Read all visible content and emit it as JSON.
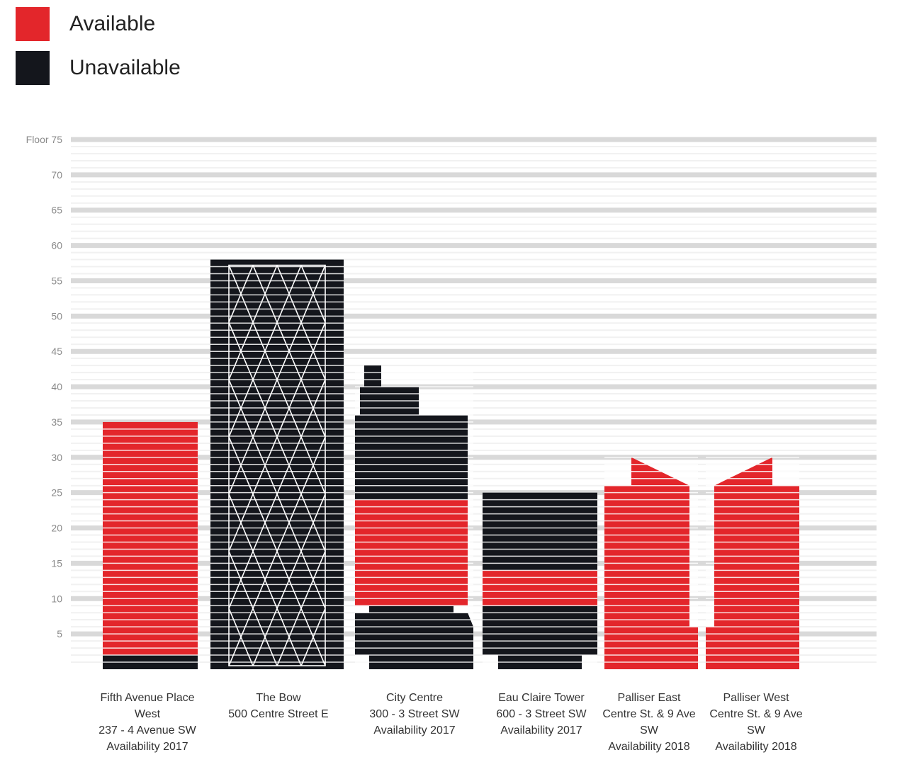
{
  "legend": [
    {
      "label": "Available",
      "color": "#e3262b"
    },
    {
      "label": "Unavailable",
      "color": "#14161c"
    }
  ],
  "chart_data": {
    "type": "bar",
    "ylabel_prefix": "Floor",
    "ylim": [
      0,
      75
    ],
    "yticks": [
      5,
      10,
      15,
      20,
      25,
      30,
      35,
      40,
      45,
      50,
      55,
      60,
      65,
      70,
      75
    ],
    "ytick_labels": [
      "5",
      "10",
      "15",
      "20",
      "25",
      "30",
      "35",
      "40",
      "45",
      "50",
      "55",
      "60",
      "65",
      "70",
      "Floor 75"
    ],
    "colors": {
      "available": "#e3262b",
      "unavailable": "#14161c"
    },
    "buildings": [
      {
        "name_lines": [
          "Fifth Avenue Place",
          "West",
          "237 - 4 Avenue SW",
          "Availability 2017"
        ],
        "total_floors": 35,
        "segments": [
          {
            "status": "unavailable",
            "from": 0,
            "to": 2
          },
          {
            "status": "available",
            "from": 2,
            "to": 35
          }
        ]
      },
      {
        "name_lines": [
          "The  Bow",
          "500 Centre Street E"
        ],
        "total_floors": 58,
        "segments": [
          {
            "status": "unavailable",
            "from": 0,
            "to": 58
          }
        ]
      },
      {
        "name_lines": [
          "City Centre",
          "300 - 3 Street SW",
          "Availability 2017"
        ],
        "total_floors": 43,
        "segments": [
          {
            "status": "unavailable",
            "from": 0,
            "to": 9
          },
          {
            "status": "available",
            "from": 9,
            "to": 24
          },
          {
            "status": "unavailable",
            "from": 24,
            "to": 43
          }
        ]
      },
      {
        "name_lines": [
          "Eau Claire Tower",
          "600 - 3 Street SW",
          "Availability 2017"
        ],
        "total_floors": 25,
        "segments": [
          {
            "status": "unavailable",
            "from": 0,
            "to": 9
          },
          {
            "status": "available",
            "from": 9,
            "to": 14
          },
          {
            "status": "unavailable",
            "from": 14,
            "to": 25
          }
        ]
      },
      {
        "name_lines": [
          "Palliser East",
          "Centre St. & 9 Ave",
          "SW",
          "Availability 2018"
        ],
        "total_floors": 31,
        "segments": [
          {
            "status": "available",
            "from": 0,
            "to": 31
          }
        ]
      },
      {
        "name_lines": [
          "Palliser West",
          "Centre St. & 9 Ave",
          "SW",
          "Availability 2018"
        ],
        "total_floors": 31,
        "segments": [
          {
            "status": "available",
            "from": 0,
            "to": 31
          }
        ]
      }
    ]
  }
}
